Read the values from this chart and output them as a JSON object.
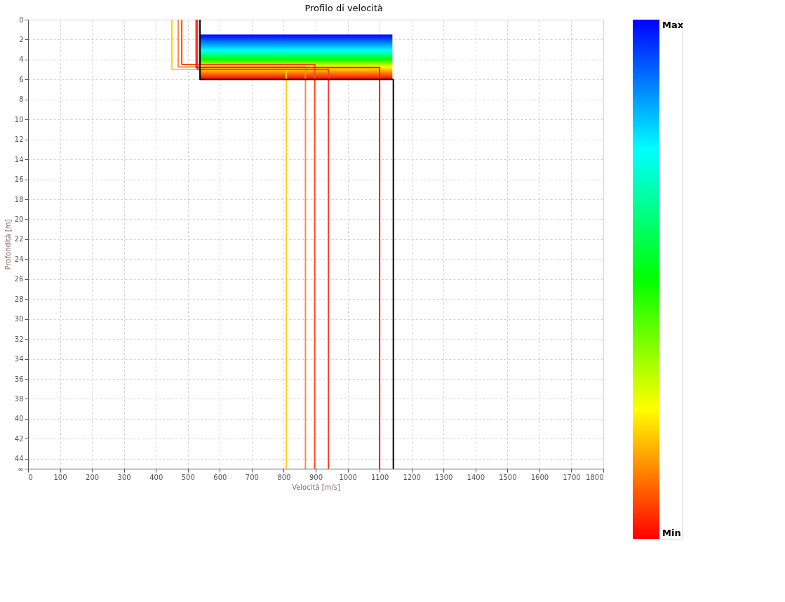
{
  "chart_data": {
    "type": "line",
    "title": "Profilo di velocità",
    "xlabel": "Velocità [m/s]",
    "ylabel": "Profondità [m]",
    "series": [
      {
        "color": "#ffd21a",
        "x": [
          450,
          450,
          808,
          808
        ],
        "values": [
          0,
          5,
          5,
          45
        ]
      },
      {
        "color": "#ff8c3c",
        "x": [
          470,
          470,
          868,
          868
        ],
        "values": [
          0,
          4.75,
          4.75,
          45
        ]
      },
      {
        "color": "#ff4a10",
        "x": [
          481,
          481,
          897,
          897
        ],
        "values": [
          0,
          4.5,
          4.5,
          45
        ]
      },
      {
        "color": "#ff3a30",
        "x": [
          530,
          530,
          940,
          940
        ],
        "values": [
          0,
          5,
          5,
          45
        ]
      },
      {
        "color": "#ff1010",
        "x": [
          526,
          526,
          1100,
          1100
        ],
        "values": [
          0,
          4.8,
          4.8,
          45
        ]
      },
      {
        "color": "#000000",
        "x": [
          538,
          538,
          1143,
          1143
        ],
        "values": [
          0,
          6,
          6,
          45
        ]
      }
    ],
    "xlim": [
      0,
      1800
    ],
    "xticks": [
      0,
      100,
      200,
      300,
      400,
      500,
      600,
      700,
      800,
      900,
      1000,
      1100,
      1200,
      1300,
      1400,
      1500,
      1600,
      1700,
      1800
    ],
    "ylim": [
      45,
      0
    ],
    "yticks": [
      0,
      2,
      4,
      6,
      8,
      10,
      12,
      14,
      16,
      18,
      20,
      22,
      24,
      26,
      28,
      30,
      32,
      34,
      36,
      38,
      40,
      42,
      44,
      {
        "value": 45,
        "label": "∞"
      }
    ],
    "grid": true,
    "legend": false,
    "line_style": "solid",
    "marker": "none",
    "annotations": [
      "Max",
      "Min"
    ]
  }
}
